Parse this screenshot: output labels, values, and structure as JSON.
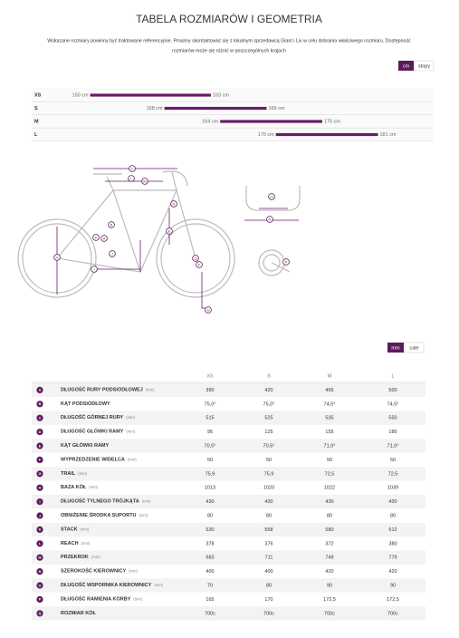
{
  "header": {
    "title": "TABELA ROZMIARÓW I GEOMETRIA",
    "note_lines": [
      "Wskazane rozmiary powinny być traktowane referencyjnie. Prosimy skontaktować się z lokalnym sprzedawcą Giant i Liv w celu dobrania właściwego rozmiaru. Dostępność",
      "rozmiarów może się różnić w poszczególnych krajach"
    ]
  },
  "height_toggle": [
    "cm",
    "stopy"
  ],
  "size_chart": {
    "type": "range-bar",
    "categories": [
      "XS",
      "S",
      "M",
      "L"
    ],
    "low": [
      150,
      158,
      164,
      170
    ],
    "high": [
      163,
      169,
      175,
      181
    ],
    "low_labels": [
      "150 cm",
      "158 cm",
      "164 cm",
      "170 cm"
    ],
    "high_labels": [
      "163 cm",
      "169 cm",
      "175 cm",
      "181 cm"
    ],
    "color": "#6a1b6a",
    "xlim": [
      143.7,
      186.9
    ]
  },
  "geometry_toggle": [
    "mm",
    "cale"
  ],
  "table": {
    "columns": [
      "XS",
      "S",
      "M",
      "L"
    ],
    "rows": [
      {
        "letter": "A",
        "name": "DŁUGOŚĆ RURY PODSIODŁOWEJ",
        "unit": "(mm)",
        "values": [
          "390",
          "420",
          "465",
          "500"
        ]
      },
      {
        "letter": "B",
        "name": "KĄT PODSIODŁOWY",
        "values": [
          "75,0°",
          "75,0°",
          "74,5°",
          "74,5°"
        ]
      },
      {
        "letter": "C",
        "name": "DŁUGOŚĆ GÓRNEJ RURY",
        "unit": "(mm)",
        "values": [
          "515",
          "525",
          "535",
          "550"
        ]
      },
      {
        "letter": "D",
        "name": "DŁUGOŚĆ GŁÓWKI RAMY",
        "unit": "(mm)",
        "values": [
          "95",
          "125",
          "155",
          "180"
        ]
      },
      {
        "letter": "E",
        "name": "KĄT GŁÓWKI RAMY",
        "values": [
          "70,5°",
          "70,5°",
          "71,0°",
          "71,0°"
        ]
      },
      {
        "letter": "F",
        "name": "WYPRZEDZENIE WIDELCA",
        "unit": "(mm)",
        "values": [
          "50",
          "50",
          "50",
          "50"
        ]
      },
      {
        "letter": "G",
        "name": "TRAIL",
        "unit": "(mm)",
        "values": [
          "75,9",
          "75,9",
          "72,5",
          "72,5"
        ]
      },
      {
        "letter": "H",
        "name": "BAZA KÓŁ",
        "unit": "(mm)",
        "values": [
          "1013",
          "1020",
          "1022",
          "1039"
        ]
      },
      {
        "letter": "I",
        "name": "DŁUGOŚĆ TYLNEGO TRÓJKĄTA",
        "unit": "(mm)",
        "values": [
          "430",
          "430",
          "430",
          "430"
        ]
      },
      {
        "letter": "J",
        "name": "OBNIŻENIE ŚRODKA SUPORTU",
        "unit": "(mm)",
        "values": [
          "80",
          "80",
          "80",
          "80"
        ]
      },
      {
        "letter": "K",
        "name": "STACK",
        "unit": "(mm)",
        "values": [
          "530",
          "558",
          "580",
          "612"
        ]
      },
      {
        "letter": "L",
        "name": "REACH",
        "unit": "(mm)",
        "values": [
          "378",
          "376",
          "372",
          "380"
        ]
      },
      {
        "letter": "M",
        "name": "PRZEKROK",
        "unit": "(mm)",
        "values": [
          "683",
          "711",
          "749",
          "779"
        ]
      },
      {
        "letter": "N",
        "name": "SZEROKOŚĆ KIEROWNICY",
        "unit": "(mm)",
        "values": [
          "400",
          "400",
          "420",
          "420"
        ]
      },
      {
        "letter": "O",
        "name": "DŁUGOŚĆ WSPORNIKA KIEROWNICY",
        "unit": "(mm)",
        "values": [
          "70",
          "80",
          "90",
          "90"
        ]
      },
      {
        "letter": "P",
        "name": "DŁUGOŚĆ RAMIENIA KORBY",
        "unit": "(mm)",
        "values": [
          "165",
          "170",
          "172,5",
          "172,5"
        ]
      },
      {
        "letter": "Q",
        "name": "ROZMIAR KÓŁ",
        "values": [
          "700c",
          "700c",
          "700c",
          "700c"
        ]
      }
    ]
  }
}
